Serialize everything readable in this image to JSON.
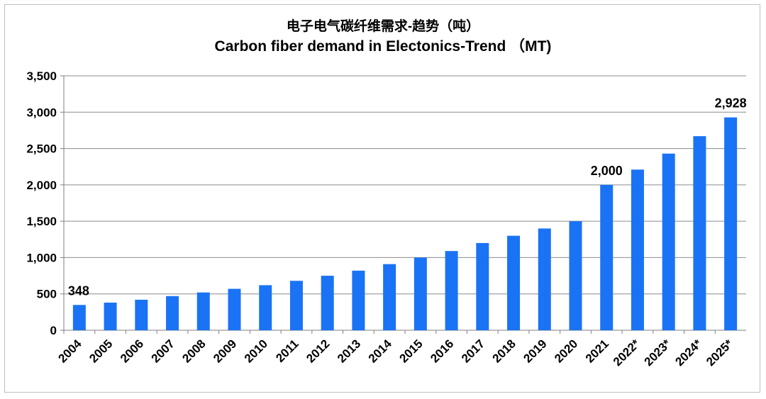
{
  "chart_data": {
    "type": "bar",
    "title": "电子电气碳纤维需求-趋势（吨）",
    "subtitle": "Carbon fiber demand in Electonics-Trend （MT)",
    "xlabel": "",
    "ylabel": "",
    "ylim": [
      0,
      3500
    ],
    "yticks": [
      0,
      500,
      1000,
      1500,
      2000,
      2500,
      3000,
      3500
    ],
    "ytick_labels": [
      "0",
      "500",
      "1,000",
      "1,500",
      "2,000",
      "2,500",
      "3,000",
      "3,500"
    ],
    "grid": true,
    "legend": "none",
    "categories": [
      "2004",
      "2005",
      "2006",
      "2007",
      "2008",
      "2009",
      "2010",
      "2011",
      "2012",
      "2013",
      "2014",
      "2015",
      "2016",
      "2017",
      "2018",
      "2019",
      "2020",
      "2021",
      "2022*",
      "2023*",
      "2024*",
      "2025*"
    ],
    "values": [
      348,
      380,
      420,
      470,
      520,
      570,
      620,
      680,
      750,
      820,
      910,
      1000,
      1090,
      1200,
      1300,
      1400,
      1500,
      2000,
      2210,
      2430,
      2670,
      2928
    ],
    "data_labels": [
      {
        "index": 0,
        "text": "348"
      },
      {
        "index": 17,
        "text": "2,000"
      },
      {
        "index": 21,
        "text": "2,928"
      }
    ],
    "bar_color": "#1a73f5"
  }
}
